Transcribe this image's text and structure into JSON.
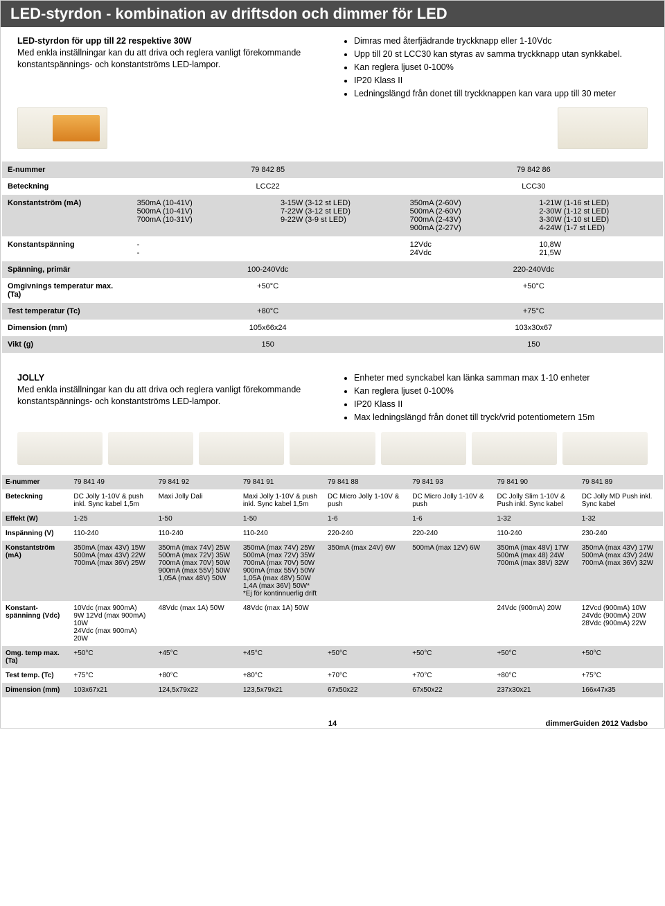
{
  "colors": {
    "title_bg": "#4c4c4c",
    "title_text": "#ffffff",
    "row_dark": "#d8d8d8",
    "row_light": "#ffffff",
    "body_text": "#000000"
  },
  "page_title": "LED-styrdon - kombination av driftsdon och dimmer för LED",
  "intro": {
    "heading": "LED-styrdon för upp till 22 respektive 30W",
    "left_text": "Med enkla inställningar kan du att driva och reglera vanligt förekommande konstantspännings- och konstantströms LED-lampor.",
    "bullets": [
      "Dimras med återfjädrande tryckknapp eller 1-10Vdc",
      "Upp till 20 st LCC30 kan styras av samma tryckknapp utan synkkabel.",
      "Kan reglera ljuset 0-100%",
      "IP20 Klass II",
      "Ledningslängd från donet till tryckknappen kan vara upp till 30 meter"
    ]
  },
  "table1": {
    "rows": [
      {
        "label": "E-nummer",
        "cells": [
          "79 842 85",
          "",
          "79 842 86",
          ""
        ]
      },
      {
        "label": "Beteckning",
        "cells": [
          "LCC22",
          "",
          "LCC30",
          ""
        ]
      },
      {
        "label": "Konstantström (mA)",
        "cells": [
          "350mA (10-41V)\n500mA (10-41V)\n700mA (10-31V)",
          "3-15W (3-12 st LED)\n7-22W (3-12 st LED)\n9-22W (3-9 st LED)",
          "350mA (2-60V)\n500mA (2-60V)\n700mA (2-43V)\n900mA (2-27V)",
          "1-21W (1-16 st LED)\n2-30W (1-12 st LED)\n3-30W (1-10 st LED)\n4-24W (1-7 st LED)"
        ]
      },
      {
        "label": "Konstantspänning",
        "cells": [
          "-\n-",
          "",
          "12Vdc\n24Vdc",
          "10,8W\n21,5W"
        ]
      },
      {
        "label": "Spänning, primär",
        "cells": [
          "100-240Vdc",
          "",
          "220-240Vdc",
          ""
        ]
      },
      {
        "label": "Omgivnings temperatur max. (Ta)",
        "cells": [
          "+50°C",
          "",
          "+50°C",
          ""
        ]
      },
      {
        "label": "Test temperatur (Tc)",
        "cells": [
          "+80°C",
          "",
          "+75°C",
          ""
        ]
      },
      {
        "label": "Dimension (mm)",
        "cells": [
          "105x66x24",
          "",
          "103x30x67",
          ""
        ]
      },
      {
        "label": "Vikt (g)",
        "cells": [
          "150",
          "",
          "150",
          ""
        ]
      }
    ]
  },
  "mid": {
    "heading": "JOLLY",
    "left_text": "Med enkla inställningar kan du att driva och reglera vanligt förekommande konstantspännings- och konstantströms LED-lampor.",
    "bullets": [
      "Enheter med synckabel kan länka samman max 1-10 enheter",
      "Kan reglera ljuset 0-100%",
      "IP20 Klass II",
      "Max ledningslängd från donet till tryck/vrid potentiometern 15m"
    ]
  },
  "table2": {
    "headers": [
      "79 841 49",
      "79 841 92",
      "79 841 91",
      "79 841 88",
      "79 841 93",
      "79 841 90",
      "79 841 89"
    ],
    "rows": [
      {
        "label": "E-nummer",
        "cells": [
          "79 841 49",
          "79 841 92",
          "79 841 91",
          "79 841 88",
          "79 841 93",
          "79 841 90",
          "79 841 89"
        ]
      },
      {
        "label": "Beteckning",
        "cells": [
          "DC Jolly 1-10V & push inkl. Sync kabel 1,5m",
          "Maxi Jolly Dali",
          "Maxi Jolly 1-10V & push inkl. Sync kabel 1,5m",
          "DC Micro Jolly 1-10V & push",
          "DC Micro Jolly 1-10V & push",
          "DC Jolly Slim 1-10V & Push inkl. Sync kabel",
          "DC Jolly MD Push inkl. Sync kabel"
        ]
      },
      {
        "label": "Effekt (W)",
        "cells": [
          "1-25",
          "1-50",
          "1-50",
          "1-6",
          "1-6",
          "1-32",
          "1-32"
        ]
      },
      {
        "label": "Inspänning (V)",
        "cells": [
          "110-240",
          "110-240",
          "110-240",
          "220-240",
          "220-240",
          "110-240",
          "230-240"
        ]
      },
      {
        "label": "Konstantström (mA)",
        "cells": [
          "350mA (max 43V) 15W\n500mA (max 43V) 22W\n700mA (max 36V) 25W",
          "350mA (max 74V) 25W\n500mA (max 72V) 35W\n700mA (max 70V) 50W\n900mA (max 55V) 50W\n1,05A (max 48V) 50W",
          "350mA (max 74V) 25W\n500mA (max 72V) 35W\n700mA (max 70V) 50W\n900mA (max 55V) 50W\n1,05A (max 48V) 50W\n1,4A (max 36V) 50W*\n*Ej för kontinnuerlig drift",
          "350mA (max 24V) 6W",
          "500mA (max 12V) 6W",
          "350mA (max 48V) 17W\n500mA (max 48) 24W\n700mA (max 38V) 32W",
          "350mA (max 43V) 17W\n500mA (max 43V) 24W\n700mA (max 36V) 32W"
        ]
      },
      {
        "label": "Konstant-spänninng (Vdc)",
        "cells": [
          "10Vdc (max 900mA)\n9W 12Vd (max 900mA) 10W\n24Vdc (max 900mA) 20W",
          "48Vdc (max 1A) 50W",
          "48Vdc (max 1A) 50W",
          "",
          "",
          "24Vdc (900mA) 20W",
          "12Vcd (900mA) 10W\n24Vdc (900mA) 20W\n28Vdc (900mA) 22W"
        ]
      },
      {
        "label": "Omg. temp max. (Ta)",
        "cells": [
          "+50°C",
          "+45°C",
          "+45°C",
          "+50°C",
          "+50°C",
          "+50°C",
          "+50°C"
        ]
      },
      {
        "label": "Test temp. (Tc)",
        "cells": [
          "+75°C",
          "+80°C",
          "+80°C",
          "+70°C",
          "+70°C",
          "+80°C",
          "+75°C"
        ]
      },
      {
        "label": "Dimension (mm)",
        "cells": [
          "103x67x21",
          "124,5x79x22",
          "123,5x79x21",
          "67x50x22",
          "67x50x22",
          "237x30x21",
          "166x47x35"
        ]
      }
    ]
  },
  "footer": {
    "page": "14",
    "right": "dimmerGuiden 2012    Vadsbo"
  }
}
